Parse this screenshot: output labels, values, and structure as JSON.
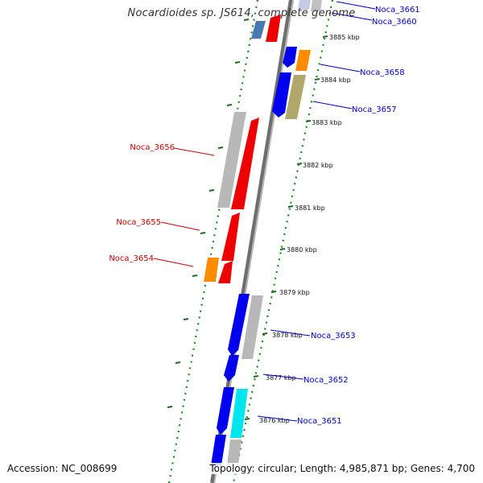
{
  "title": "Nocardioides sp. JS614, complete genome",
  "accession": "Accession: NC_008699",
  "summary": "Topology: circular; Length: 4,985,871 bp; Genes: 4,700",
  "colors": {
    "backbone": "#8c8c8c",
    "forward_label": "#cc0000",
    "reverse_label": "#0000cc",
    "ruler_dots": "#1a8a1a",
    "ruler_dash": "#1a6b1a"
  },
  "ticks": [
    {
      "label": "3885 kbp"
    },
    {
      "label": "3884 kbp"
    },
    {
      "label": "3883 kbp"
    },
    {
      "label": "3882 kbp"
    },
    {
      "label": "3881 kbp"
    },
    {
      "label": "3880 kbp"
    },
    {
      "label": "3879 kbp"
    },
    {
      "label": "3878 kbp"
    },
    {
      "label": "3877 kbp"
    },
    {
      "label": "3876 kbp"
    }
  ],
  "gene_labels": [
    {
      "name": "Noca_3661",
      "strand": "reverse"
    },
    {
      "name": "Noca_3660",
      "strand": "reverse"
    },
    {
      "name": "Noca_3658",
      "strand": "reverse"
    },
    {
      "name": "Noca_3657",
      "strand": "reverse"
    },
    {
      "name": "Noca_3656",
      "strand": "forward"
    },
    {
      "name": "Noca_3655",
      "strand": "forward"
    },
    {
      "name": "Noca_3654",
      "strand": "forward"
    },
    {
      "name": "Noca_3653",
      "strand": "reverse"
    },
    {
      "name": "Noca_3652",
      "strand": "reverse"
    },
    {
      "name": "Noca_3651",
      "strand": "reverse"
    }
  ]
}
